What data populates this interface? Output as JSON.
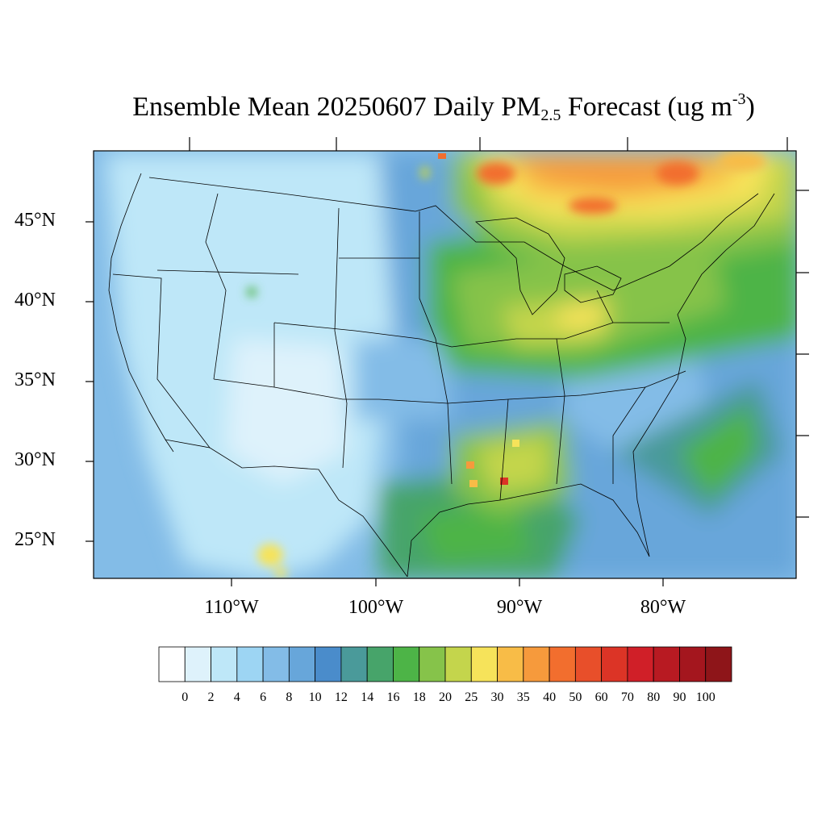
{
  "title": {
    "prefix": "Ensemble Mean 20250607 Daily PM",
    "subscript": "2.5",
    "middle": " Forecast (ug m",
    "superscript": "-3",
    "suffix": ")"
  },
  "lat_labels": [
    "45°N",
    "40°N",
    "35°N",
    "30°N",
    "25°N"
  ],
  "lon_labels": [
    "110°W",
    "100°W",
    "90°W",
    "80°W"
  ],
  "colorbar": {
    "labels": [
      "0",
      "2",
      "4",
      "6",
      "8",
      "10",
      "12",
      "14",
      "16",
      "18",
      "20",
      "25",
      "30",
      "35",
      "40",
      "50",
      "60",
      "70",
      "80",
      "90",
      "100"
    ],
    "colors": [
      "#ffffff",
      "#def2fb",
      "#bee7f8",
      "#9dd5f3",
      "#83bce7",
      "#67a6da",
      "#4a8ccb",
      "#4a9a9a",
      "#47a46a",
      "#4db447",
      "#86c34a",
      "#c4d54c",
      "#f6e35a",
      "#f8bc47",
      "#f69a3c",
      "#f26e2e",
      "#e84f2a",
      "#dc3426",
      "#d01f28",
      "#b81a22",
      "#a4161e",
      "#8e1519"
    ]
  }
}
